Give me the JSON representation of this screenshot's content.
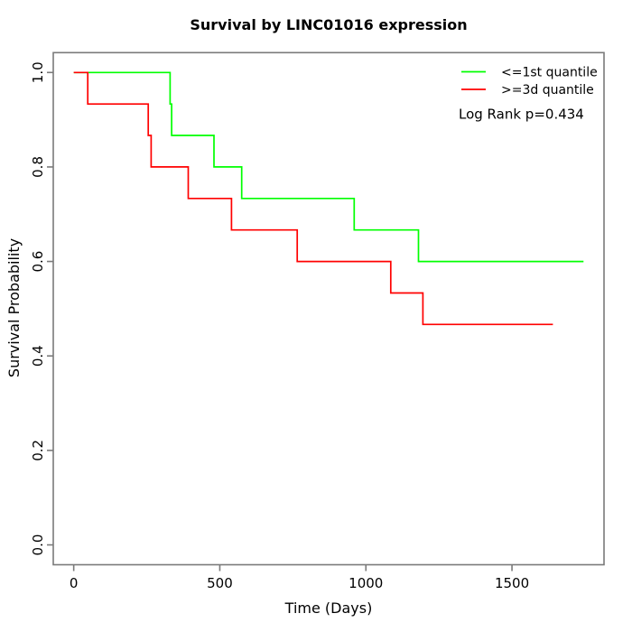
{
  "page": {
    "background": "#ffffff",
    "axis_color": "#7a7a7a",
    "text_color": "#000000"
  },
  "chart_data": {
    "type": "line",
    "subtype": "kaplan-meier-step",
    "title": "Survival by LINC01016 expression",
    "xlabel": "Time (Days)",
    "ylabel": "Survival Probability",
    "grid": false,
    "legend_position": "top-right",
    "xlim": [
      -70,
      1815
    ],
    "ylim": [
      -0.042,
      1.042
    ],
    "x_ticks": [
      "0",
      "500",
      "1000",
      "1500"
    ],
    "y_ticks": [
      "0.0",
      "0.2",
      "0.4",
      "0.6",
      "0.8",
      "1.0"
    ],
    "annotation": "Log Rank p=0.434",
    "series": [
      {
        "name": "<=1st quantile",
        "color": "#00FF00",
        "points": [
          [
            0,
            1.0
          ],
          [
            330,
            0.9333
          ],
          [
            335,
            0.8667
          ],
          [
            480,
            0.8
          ],
          [
            575,
            0.7333
          ],
          [
            960,
            0.6667
          ],
          [
            1180,
            0.6
          ],
          [
            1745,
            0.6
          ]
        ]
      },
      {
        "name": ">=3d quantile",
        "color": "#FF0000",
        "points": [
          [
            0,
            1.0
          ],
          [
            48,
            0.9333
          ],
          [
            255,
            0.8667
          ],
          [
            265,
            0.8
          ],
          [
            392,
            0.7333
          ],
          [
            540,
            0.6667
          ],
          [
            765,
            0.6
          ],
          [
            1085,
            0.5333
          ],
          [
            1195,
            0.4667
          ],
          [
            1640,
            0.4667
          ]
        ]
      }
    ]
  }
}
